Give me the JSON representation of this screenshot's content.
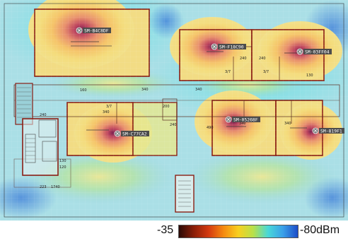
{
  "legend": {
    "min_label": "-35",
    "max_label": "-80dBm",
    "gradient_colors": [
      "#2a0a06",
      "#8a1e08",
      "#d43a10",
      "#f58a10",
      "#f8d020",
      "#b8e04a",
      "#48d8d8",
      "#3aa0e8",
      "#1c4cc8"
    ]
  },
  "access_points": [
    {
      "name": "SM-B4C8DF"
    },
    {
      "name": "SM-F18C90"
    },
    {
      "name": "SM-03FF04"
    },
    {
      "name": "SM-C77CA2"
    },
    {
      "name": "SM-05268F"
    },
    {
      "name": "SM-819F1"
    }
  ],
  "dimensions": [
    "240",
    "240",
    "130",
    "3/7",
    "3/7",
    "340",
    "340",
    "340",
    "340",
    "240",
    "240",
    "130",
    "200",
    "120",
    "223",
    "1740",
    "160",
    "490",
    "340",
    "3/7"
  ],
  "colors": {
    "background": "#b8dfe4",
    "wall": "#5a2a20",
    "room_wall": "#8a1e14",
    "ap_label_bg": "#4c4c4c"
  }
}
